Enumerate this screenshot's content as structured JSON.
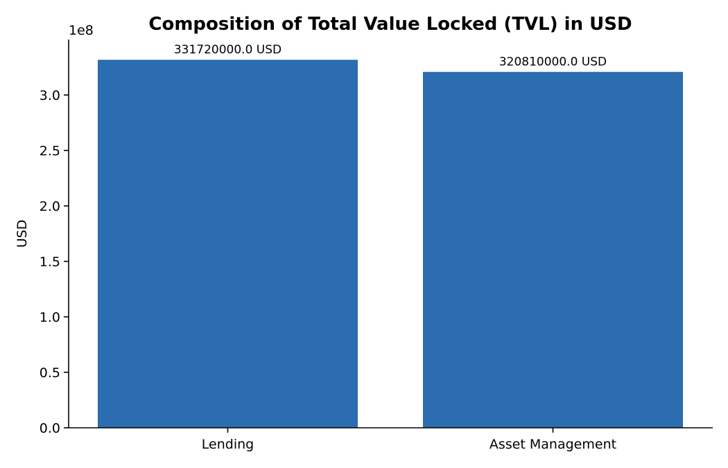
{
  "chart_data": {
    "type": "bar",
    "title": "Composition of Total Value Locked (TVL) in USD",
    "xlabel": "",
    "ylabel": "USD",
    "categories": [
      "Lending",
      "Asset Management"
    ],
    "values": [
      331720000.0,
      320810000.0
    ],
    "data_labels": [
      "331720000.0 USD",
      "320810000.0 USD"
    ],
    "y_offset_label": "1e8",
    "y_scale": 100000000,
    "ylim": [
      0,
      350000000
    ],
    "y_ticks": [
      0,
      50000000,
      100000000,
      150000000,
      200000000,
      250000000,
      300000000
    ],
    "y_tick_labels": [
      "0.0",
      "0.5",
      "1.0",
      "1.5",
      "2.0",
      "2.5",
      "3.0"
    ],
    "bar_color": "#2c6cb0",
    "grid": false,
    "legend": "none"
  }
}
